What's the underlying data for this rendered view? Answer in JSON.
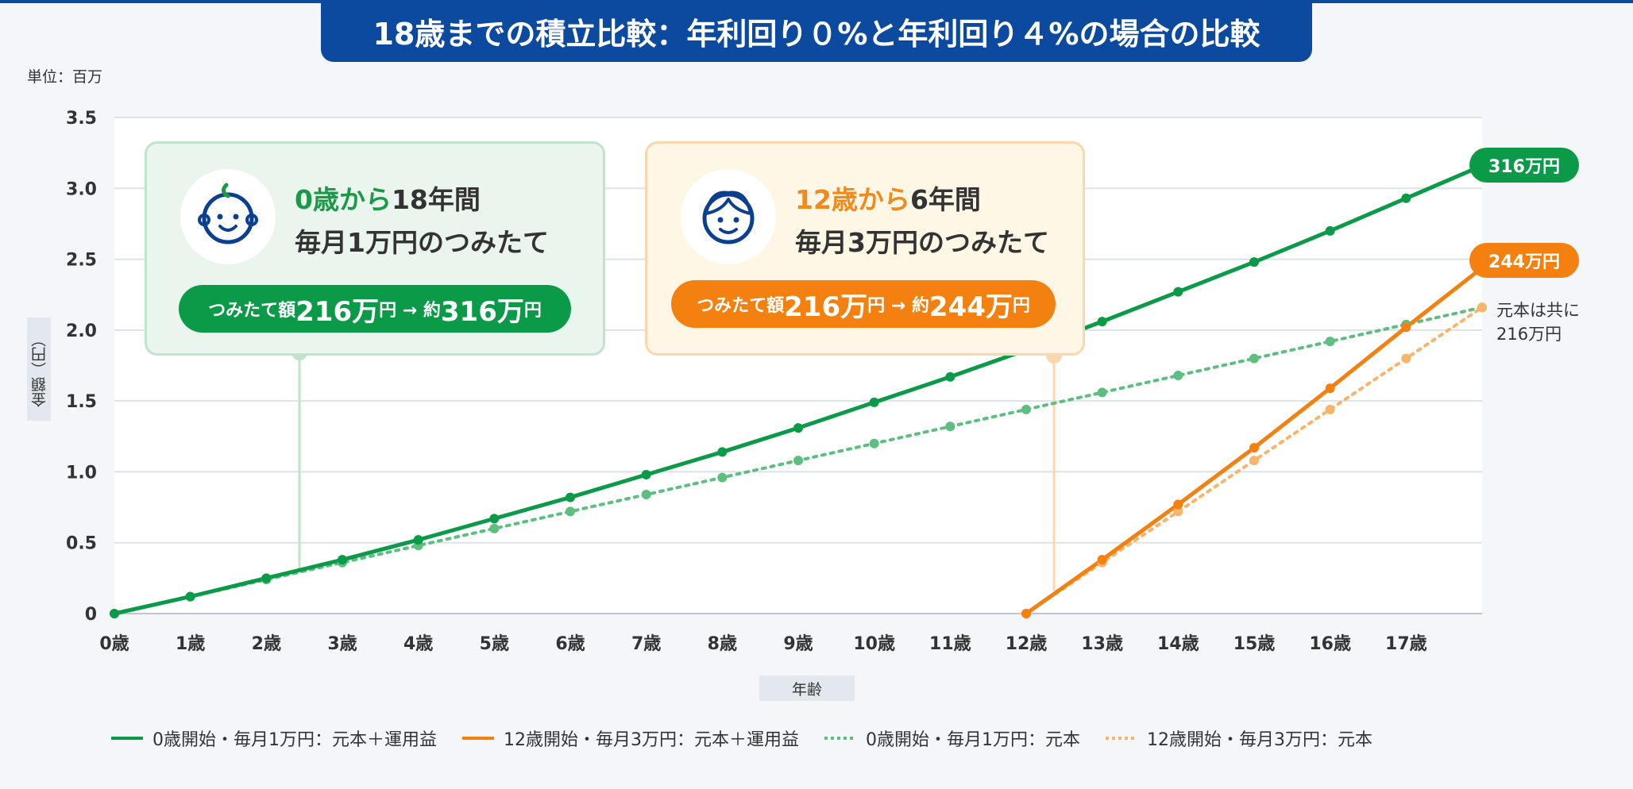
{
  "title": "18歳までの積立比較：年利回り０%と年利回り４%の場合の比較",
  "unit_label": "単位：百万",
  "colors": {
    "green": "#0a9a48",
    "green_light": "#5cbf80",
    "orange": "#f3800f",
    "orange_light": "#f9b46b",
    "navy": "#0b4a9f"
  },
  "chart_data": {
    "type": "line",
    "xlabel": "年齢",
    "ylabel": "金額（円）",
    "ylim": [
      0,
      3.5
    ],
    "yticks": [
      "0",
      "0.5",
      "1.0",
      "1.5",
      "2.0",
      "2.5",
      "3.0",
      "3.5"
    ],
    "ytick_values": [
      0,
      0.5,
      1.0,
      1.5,
      2.0,
      2.5,
      3.0,
      3.5
    ],
    "xlim": [
      0,
      18
    ],
    "xticks": [
      "0歳",
      "1歳",
      "2歳",
      "3歳",
      "4歳",
      "5歳",
      "6歳",
      "7歳",
      "8歳",
      "9歳",
      "10歳",
      "11歳",
      "12歳",
      "13歳",
      "14歳",
      "15歳",
      "16歳",
      "17歳"
    ],
    "grid": true,
    "series": [
      {
        "name": "0歳開始・毎月1万円：元本＋運用益",
        "style": "solid",
        "color": "#0a9a48",
        "x": [
          0,
          1,
          2,
          3,
          4,
          5,
          6,
          7,
          8,
          9,
          10,
          11,
          12,
          13,
          14,
          15,
          16,
          17,
          18
        ],
        "y": [
          0,
          0.12,
          0.25,
          0.38,
          0.52,
          0.67,
          0.82,
          0.98,
          1.14,
          1.31,
          1.49,
          1.67,
          1.86,
          2.06,
          2.27,
          2.48,
          2.7,
          2.93,
          3.16
        ]
      },
      {
        "name": "12歳開始・毎月3万円：元本＋運用益",
        "style": "solid",
        "color": "#f3800f",
        "x": [
          12,
          13,
          14,
          15,
          16,
          17,
          18
        ],
        "y": [
          0,
          0.38,
          0.77,
          1.17,
          1.59,
          2.02,
          2.44
        ]
      },
      {
        "name": "0歳開始・毎月1万円：元本",
        "style": "dotted",
        "color": "#5cbf80",
        "x": [
          0,
          1,
          2,
          3,
          4,
          5,
          6,
          7,
          8,
          9,
          10,
          11,
          12,
          13,
          14,
          15,
          16,
          17,
          18
        ],
        "y": [
          0,
          0.12,
          0.24,
          0.36,
          0.48,
          0.6,
          0.72,
          0.84,
          0.96,
          1.08,
          1.2,
          1.32,
          1.44,
          1.56,
          1.68,
          1.8,
          1.92,
          2.04,
          2.16
        ]
      },
      {
        "name": "12歳開始・毎月3万円：元本",
        "style": "dotted",
        "color": "#f9b46b",
        "x": [
          12,
          13,
          14,
          15,
          16,
          17,
          18
        ],
        "y": [
          0,
          0.36,
          0.72,
          1.08,
          1.44,
          1.8,
          2.16
        ]
      }
    ],
    "annotations": {
      "end_green": "316万円",
      "end_orange": "244万円",
      "note_line1": "元本は共に",
      "note_line2": "216万円"
    }
  },
  "card_green": {
    "l1_accent": "0歳から",
    "l1_rest": "18年間",
    "l2": "毎月1万円のつみたて",
    "pill_a": "つみたて額 ",
    "pill_b": "216万",
    "pill_c": "円 → 約",
    "pill_d": "316万",
    "pill_e": "円"
  },
  "card_orange": {
    "l1_accent": "12歳から",
    "l1_rest": "6年間",
    "l2": "毎月3万円のつみたて",
    "pill_a": "つみたて額 ",
    "pill_b": "216万",
    "pill_c": "円 → 約",
    "pill_d": "244万",
    "pill_e": "円"
  },
  "icons": {
    "baby": "baby-face-icon",
    "child": "child-face-icon"
  }
}
